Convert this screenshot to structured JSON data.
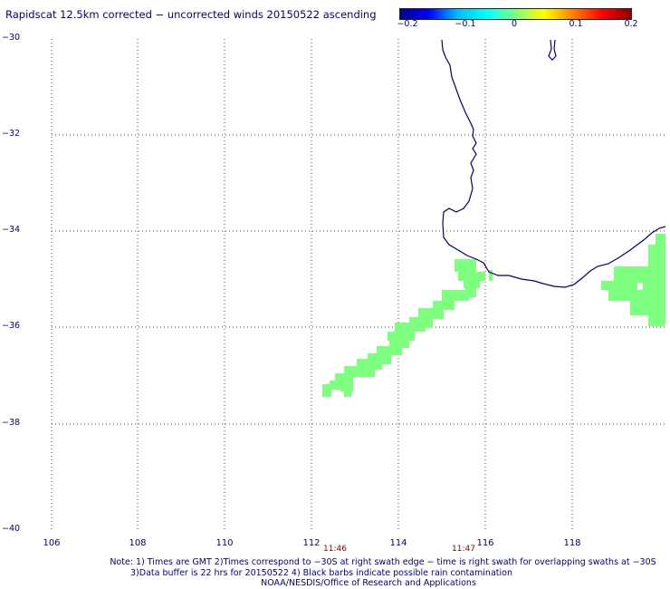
{
  "title": "Rapidscat 12.5km corrected − uncorrected winds 20150522 ascending",
  "colorbar": {
    "stops": [
      "#00008b",
      "#0000ff",
      "#00bfff",
      "#00ffff",
      "#7fff7f",
      "#ffff00",
      "#ff7f00",
      "#ff0000",
      "#8b0000"
    ],
    "ticks": [
      "−0.2",
      "−0.1",
      "0",
      "0.1",
      "0.2"
    ]
  },
  "map": {
    "lat_labels": [
      "−30",
      "−32",
      "−34",
      "−36",
      "−38",
      "−40"
    ],
    "lon_labels": [
      "106",
      "108",
      "110",
      "112",
      "114",
      "116",
      "118"
    ],
    "grid": "dotted",
    "coastline_color": "#000080",
    "swath_color": "#7fff7f"
  },
  "time_labels": [
    "11:46",
    "11:47"
  ],
  "notes": [
    "Note: 1) Times are GMT 2)Times correspond to −30S at right swath edge − time is right swath for overlapping swaths at −30S",
    "3)Data buffer is 22 hrs for 20150522 4) Black barbs indicate possible rain contamination",
    "NOAA/NESDIS/Office of Research and Applications"
  ]
}
